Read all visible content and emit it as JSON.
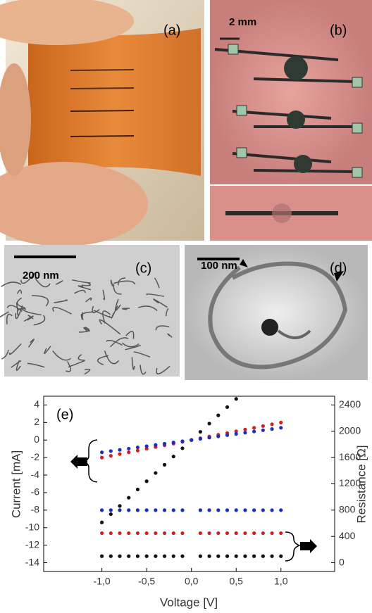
{
  "panels": {
    "a": "(a)",
    "b": "(b)",
    "b_scale": "2 mm",
    "c": "(c)",
    "c_scale": "200 nm",
    "d": "(d)",
    "d_scale": "100 nm"
  },
  "chart_data": {
    "type": "scatter",
    "label": "(e)",
    "x_label": "Voltage [V]",
    "y_label": "Current  [mA]",
    "y2_label": "Resistance [Ω]",
    "x": [
      -1.0,
      -0.9,
      -0.8,
      -0.7,
      -0.6,
      -0.5,
      -0.4,
      -0.3,
      -0.2,
      -0.1,
      0.0,
      0.1,
      0.2,
      0.3,
      0.4,
      0.5,
      0.6,
      0.7,
      0.8,
      0.9,
      1.0
    ],
    "xlim": [
      -1.65,
      1.6
    ],
    "xticks": [
      {
        "value": -1,
        "label": "-1,0"
      },
      {
        "value": -0.5,
        "label": "-0,5"
      },
      {
        "value": 0,
        "label": "0,0"
      },
      {
        "value": 0.5,
        "label": "0,5"
      },
      {
        "value": 1,
        "label": "1,0"
      }
    ],
    "ylim": [
      -15,
      5
    ],
    "yticks": [
      4,
      2,
      0,
      -2,
      -4,
      -6,
      -8,
      -10,
      -12,
      -14
    ],
    "y2lim": [
      -133,
      2533
    ],
    "y2ticks": [
      2400,
      2000,
      1600,
      1200,
      800,
      400,
      0
    ],
    "series": [
      {
        "color": "#111111",
        "values": [
          -9.4,
          -8.46,
          -7.52,
          -6.58,
          -5.64,
          -4.7,
          -3.76,
          -2.82,
          -1.88,
          -0.94,
          0,
          0.94,
          1.88,
          2.82,
          3.76,
          4.7,
          null,
          null,
          null,
          null,
          null
        ]
      },
      {
        "color": "#d02020",
        "values": [
          -2,
          -1.8,
          -1.6,
          -1.4,
          -1.2,
          -1,
          -0.8,
          -0.6,
          -0.4,
          -0.2,
          0,
          0.2,
          0.4,
          0.6,
          0.8,
          1,
          1.2,
          1.4,
          1.6,
          1.8,
          2
        ]
      },
      {
        "color": "#1a2fc0",
        "values": [
          -1.4,
          -1.26,
          -1.12,
          -0.98,
          -0.84,
          -0.7,
          -0.56,
          -0.42,
          -0.28,
          -0.14,
          0,
          0.14,
          0.28,
          0.42,
          0.56,
          0.7,
          0.84,
          0.98,
          1.12,
          1.26,
          1.4
        ]
      },
      {
        "color": "#1a2fc0",
        "axis": "y2",
        "values": [
          800,
          800,
          800,
          800,
          800,
          800,
          800,
          800,
          800,
          800,
          null,
          800,
          800,
          800,
          800,
          800,
          800,
          800,
          800,
          800,
          800
        ]
      },
      {
        "color": "#d02020",
        "axis": "y2",
        "values": [
          450,
          450,
          450,
          450,
          450,
          450,
          450,
          450,
          450,
          450,
          null,
          450,
          450,
          450,
          450,
          450,
          450,
          450,
          450,
          450,
          450
        ]
      },
      {
        "color": "#111111",
        "axis": "y2",
        "values": [
          100,
          100,
          100,
          100,
          100,
          100,
          100,
          100,
          100,
          100,
          null,
          100,
          100,
          100,
          100,
          100,
          100,
          100,
          100,
          100,
          100
        ]
      }
    ]
  }
}
